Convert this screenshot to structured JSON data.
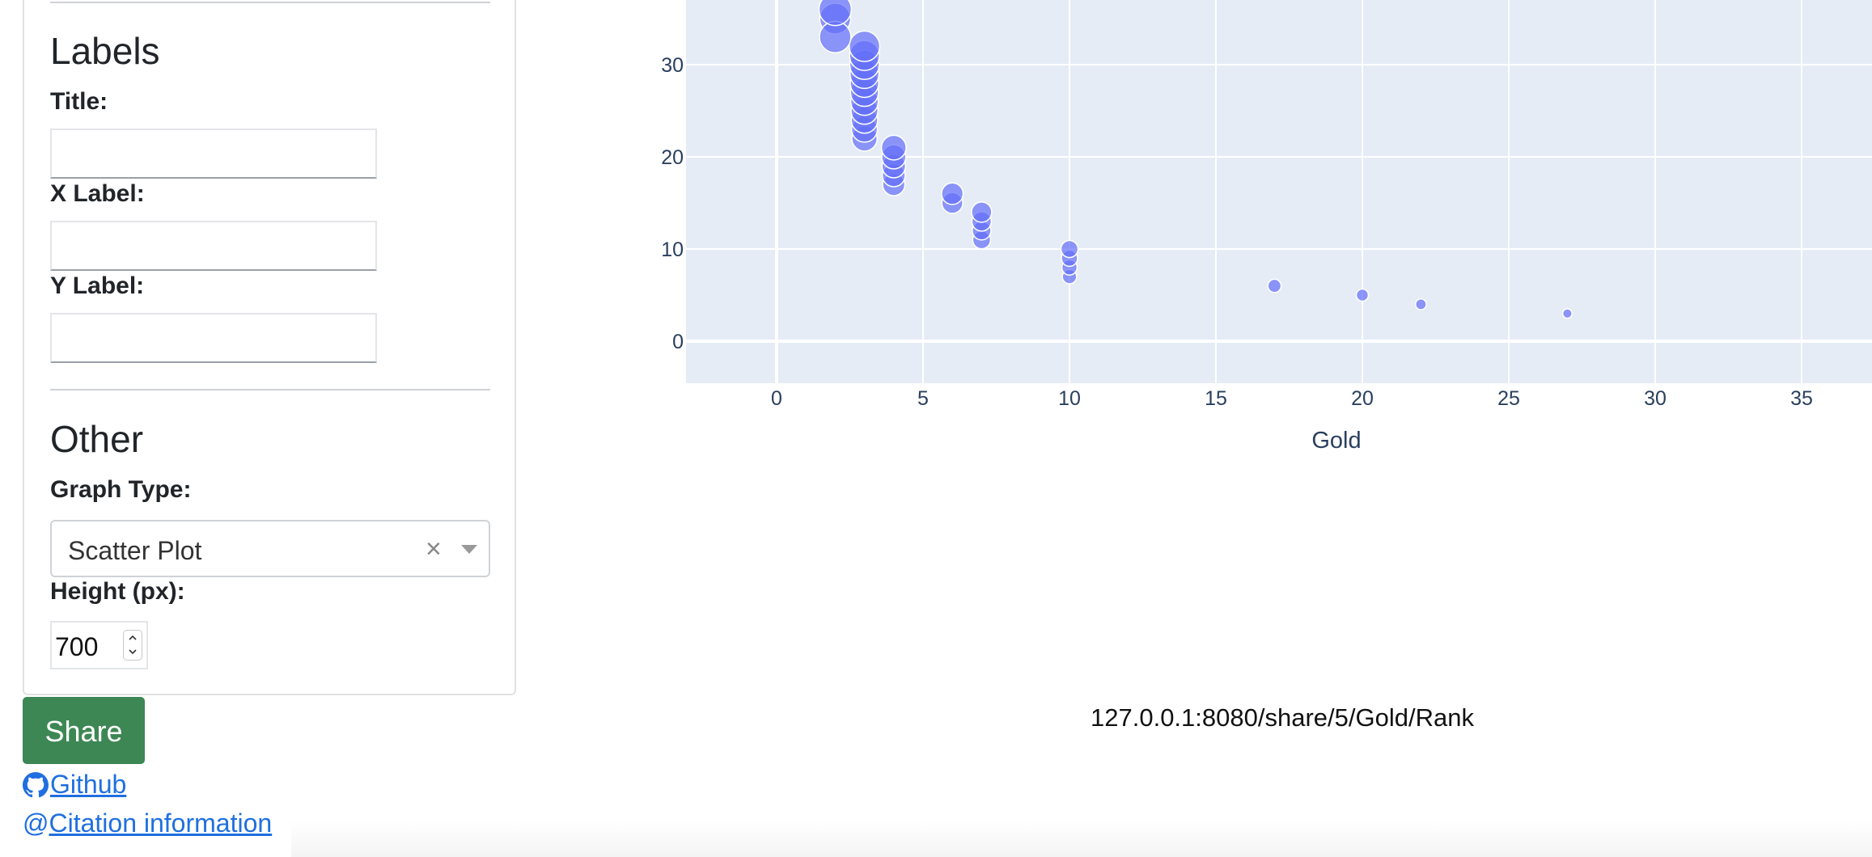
{
  "sidebar": {
    "labels_heading": "Labels",
    "title_label": "Title:",
    "title_value": "",
    "xlabel_label": "X Label:",
    "xlabel_value": "",
    "ylabel_label": "Y Label:",
    "ylabel_value": "",
    "other_heading": "Other",
    "graph_type_label": "Graph Type:",
    "graph_type_value": "Scatter Plot",
    "height_label": "Height (px):",
    "height_value": "700"
  },
  "actions": {
    "share_label": "Share",
    "github_label": "Github",
    "citation_label": "Citation information",
    "share_url": "127.0.0.1:8080/share/5/Gold/Rank"
  },
  "icons": {
    "clear": "close-icon",
    "dropdown": "chevron-down-icon",
    "github": "github-icon",
    "citation": "at-icon"
  },
  "colors": {
    "share_button": "#3d8754",
    "link": "#1f6fe0",
    "plot_background": "#e5ecf6",
    "marker": "#636efa"
  },
  "chart_data": {
    "type": "scatter",
    "title": "",
    "xlabel": "Gold",
    "ylabel": "",
    "xlim": [
      -3.1,
      37.5
    ],
    "ylim": [
      -4.5,
      37
    ],
    "x_ticks": [
      "0",
      "5",
      "10",
      "15",
      "20",
      "25",
      "30",
      "35"
    ],
    "y_ticks": [
      "0",
      "10",
      "20",
      "30"
    ],
    "grid": true,
    "marker_size_encoding": "bubble",
    "points": [
      {
        "x": 2,
        "y": 36,
        "size": 36
      },
      {
        "x": 2,
        "y": 33,
        "size": 34
      },
      {
        "x": 2,
        "y": 35,
        "size": 33
      },
      {
        "x": 3,
        "y": 32,
        "size": 32
      },
      {
        "x": 3,
        "y": 31,
        "size": 31
      },
      {
        "x": 3,
        "y": 30,
        "size": 30
      },
      {
        "x": 3,
        "y": 29,
        "size": 29
      },
      {
        "x": 3,
        "y": 28,
        "size": 28
      },
      {
        "x": 3,
        "y": 27,
        "size": 27
      },
      {
        "x": 3,
        "y": 26,
        "size": 26
      },
      {
        "x": 3,
        "y": 25,
        "size": 25
      },
      {
        "x": 3,
        "y": 24,
        "size": 24
      },
      {
        "x": 3,
        "y": 23,
        "size": 23
      },
      {
        "x": 3,
        "y": 22,
        "size": 22
      },
      {
        "x": 4,
        "y": 21,
        "size": 21
      },
      {
        "x": 4,
        "y": 20,
        "size": 20
      },
      {
        "x": 4,
        "y": 19,
        "size": 19
      },
      {
        "x": 4,
        "y": 18,
        "size": 18
      },
      {
        "x": 4,
        "y": 17,
        "size": 17
      },
      {
        "x": 6,
        "y": 16,
        "size": 16
      },
      {
        "x": 6,
        "y": 15,
        "size": 15
      },
      {
        "x": 7,
        "y": 14,
        "size": 14
      },
      {
        "x": 7,
        "y": 13,
        "size": 13
      },
      {
        "x": 7,
        "y": 12,
        "size": 12
      },
      {
        "x": 7,
        "y": 11,
        "size": 11
      },
      {
        "x": 10,
        "y": 10,
        "size": 10
      },
      {
        "x": 10,
        "y": 9,
        "size": 9
      },
      {
        "x": 10,
        "y": 8,
        "size": 8
      },
      {
        "x": 10,
        "y": 7,
        "size": 7
      },
      {
        "x": 17,
        "y": 6,
        "size": 6
      },
      {
        "x": 20,
        "y": 5,
        "size": 5
      },
      {
        "x": 22,
        "y": 4,
        "size": 4
      },
      {
        "x": 27,
        "y": 3,
        "size": 3
      }
    ]
  }
}
